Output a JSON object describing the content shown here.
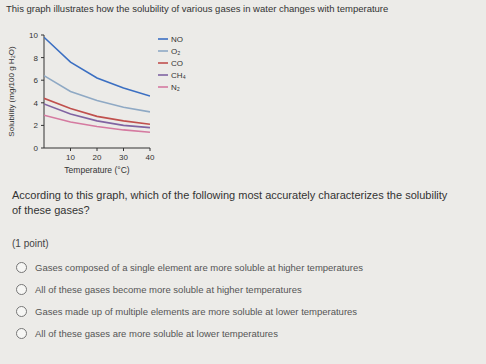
{
  "chart_data": {
    "type": "line",
    "title": "This graph illustrates how the solubility of various gases in water changes with temperature",
    "x_label": "Temperature (°C)",
    "y_label": "Solubility (mg/100 g H₂O)",
    "x": [
      0,
      10,
      20,
      30,
      40
    ],
    "series": [
      {
        "name": "NO",
        "color": "#3b6fc2",
        "values": [
          9.8,
          7.6,
          6.2,
          5.3,
          4.6
        ]
      },
      {
        "name": "O₂",
        "color": "#8fa9c4",
        "values": [
          6.4,
          5.0,
          4.2,
          3.6,
          3.2
        ]
      },
      {
        "name": "CO",
        "color": "#c0504d",
        "values": [
          4.4,
          3.5,
          2.8,
          2.4,
          2.1
        ]
      },
      {
        "name": "CH₄",
        "color": "#8064a2",
        "values": [
          3.9,
          3.0,
          2.4,
          2.0,
          1.8
        ]
      },
      {
        "name": "N₂",
        "color": "#d57aa0",
        "values": [
          2.9,
          2.3,
          1.9,
          1.6,
          1.4
        ]
      }
    ],
    "xlim": [
      0,
      40
    ],
    "xticks": [
      10,
      20,
      30,
      40
    ],
    "ylim": [
      0,
      10
    ],
    "yticks": [
      0,
      2,
      4,
      6,
      8,
      10
    ],
    "grid": false,
    "legend": "right"
  },
  "question": "According to this graph, which of the following most accurately characterizes the solubility of these gases?",
  "points": "(1 point)",
  "options": [
    "Gases composed of a single element are more soluble at higher temperatures",
    "All of these gases become more soluble at higher temperatures",
    "Gases made up of multiple elements are more soluble at lower temperatures",
    "All of these gases are more soluble at lower temperatures"
  ]
}
